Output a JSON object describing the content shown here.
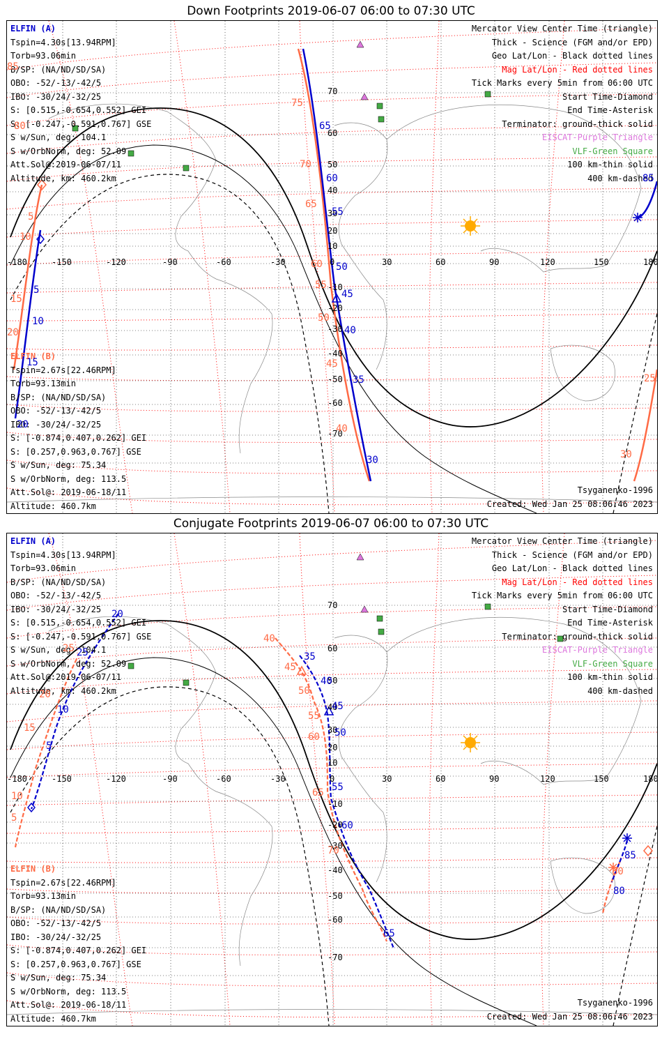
{
  "panels": [
    {
      "title": "Down Footprints 2019-06-07 06:00 to 07:30 UTC",
      "elfin_a": {
        "header": "ELFIN (A)",
        "lines": [
          "Tspin=4.30s[13.94RPM]",
          "Torb=93.06min",
          "B/SP: (NA/ND/SD/SA)",
          "OBO: -52/-13/-42/5",
          "IBO: -30/24/-32/25",
          "S: [0.515,-0.654,0.552] GEI",
          "S: [-0.247,-0.591,0.767] GSE",
          "S w/Sun, deg: 104.1",
          "S w/OrbNorm, deg: 52.09",
          "Att.Sol@:2019-06-07/11",
          "Altitude, km: 460.2km"
        ]
      },
      "elfin_b": {
        "header": "ELFIN (B)",
        "lines": [
          "Tspin=2.67s[22.46RPM]",
          "Torb=93.13min",
          "B/SP: (NA/ND/SD/SA)",
          "OBO: -52/-13/-42/5",
          "IBO: -30/24/-32/25",
          "S: [-0.874,0.407,0.262] GEI",
          "S: [0.257,0.963,0.767] GSE",
          "S w/Sun, deg: 75.34",
          "S w/OrbNorm, deg: 113.5",
          "Att.Sol@: 2019-06-18/11",
          "Altitude: 460.7km"
        ]
      },
      "legend": [
        {
          "text": "Mercator View Center Time (triangle)",
          "color": "#000000"
        },
        {
          "text": "Thick - Science (FGM and/or EPD)",
          "color": "#000000"
        },
        {
          "text": "Geo Lat/Lon - Black dotted lines",
          "color": "#000000"
        },
        {
          "text": "Mag Lat/Lon - Red dotted lines",
          "color": "#ff0000"
        },
        {
          "text": "Tick Marks every 5min from 06:00 UTC",
          "color": "#000000"
        },
        {
          "text": "Start Time-Diamond",
          "color": "#000000"
        },
        {
          "text": "End Time-Asterisk",
          "color": "#000000"
        },
        {
          "text": "Terminator: ground-thick solid",
          "color": "#000000"
        },
        {
          "text": "EISCAT-Purple Triangle",
          "color": "#dd77dd"
        },
        {
          "text": "VLF-Green Square",
          "color": "#44aa44"
        },
        {
          "text": "100 km-thin solid",
          "color": "#000000"
        },
        {
          "text": "400 km-dashed",
          "color": "#000000"
        }
      ],
      "model": "Tsyganenko-1996",
      "created": "Created: Wed Jan 25 08:06:46 2023",
      "lon_ticks": [
        "-180",
        "-150",
        "-120",
        "-90",
        "-60",
        "-30",
        "0",
        "30",
        "60",
        "90",
        "120",
        "150",
        "180"
      ],
      "lat_ticks": [
        "70",
        "60",
        "50",
        "40",
        "30",
        "20",
        "10",
        "-10",
        "-20",
        "-30",
        "-40",
        "-50",
        "-60",
        "-70"
      ],
      "mag_labels_red": [
        "85",
        "80",
        "75",
        "70",
        "65",
        "60",
        "55",
        "50",
        "45",
        "40",
        "5",
        "10",
        "15",
        "20",
        "25",
        "30"
      ],
      "mag_labels_blue": [
        "65",
        "60",
        "55",
        "50",
        "45",
        "40",
        "35",
        "30",
        "5",
        "10",
        "15",
        "20",
        "85"
      ]
    },
    {
      "title": "Conjugate Footprints 2019-06-07 06:00 to 07:30 UTC",
      "elfin_a": {
        "header": "ELFIN (A)",
        "lines": [
          "Tspin=4.30s[13.94RPM]",
          "Torb=93.06min",
          "B/SP: (NA/ND/SD/SA)",
          "OBO: -52/-13/-42/5",
          "IBO: -30/24/-32/25",
          "S: [0.515,-0.654,0.552] GEI",
          "S: [-0.247,-0.591,0.767] GSE",
          "S w/Sun, deg: 104.1",
          "S w/OrbNorm, deg: 52.09",
          "Att.Sol@:2019-06-07/11",
          "Altitude, km: 460.2km"
        ]
      },
      "elfin_b": {
        "header": "ELFIN (B)",
        "lines": [
          "Tspin=2.67s[22.46RPM]",
          "Torb=93.13min",
          "B/SP: (NA/ND/SD/SA)",
          "OBO: -52/-13/-42/5",
          "IBO: -30/24/-32/25",
          "S: [-0.874,0.407,0.262] GEI",
          "S: [0.257,0.963,0.767] GSE",
          "S w/Sun, deg: 75.34",
          "S w/OrbNorm, deg: 113.5",
          "Att.Sol@: 2019-06-18/11",
          "Altitude: 460.7km"
        ]
      },
      "legend": [
        {
          "text": "Mercator View Center Time (triangle)",
          "color": "#000000"
        },
        {
          "text": "Thick - Science (FGM and/or EPD)",
          "color": "#000000"
        },
        {
          "text": "Geo Lat/Lon - Black dotted lines",
          "color": "#000000"
        },
        {
          "text": "Mag Lat/Lon - Red dotted lines",
          "color": "#ff0000"
        },
        {
          "text": "Tick Marks every 5min from 06:00 UTC",
          "color": "#000000"
        },
        {
          "text": "Start Time-Diamond",
          "color": "#000000"
        },
        {
          "text": "End Time-Asterisk",
          "color": "#000000"
        },
        {
          "text": "Terminator: ground-thick solid",
          "color": "#000000"
        },
        {
          "text": "EISCAT-Purple Triangle",
          "color": "#dd77dd"
        },
        {
          "text": "VLF-Green Square",
          "color": "#44aa44"
        },
        {
          "text": "100 km-thin solid",
          "color": "#000000"
        },
        {
          "text": "400 km-dashed",
          "color": "#000000"
        }
      ],
      "model": "Tsyganenko-1996",
      "created": "Created: Wed Jan 25 08:06:46 2023",
      "lon_ticks": [
        "-180",
        "-150",
        "-120",
        "-90",
        "-60",
        "-30",
        "0",
        "30",
        "60",
        "90",
        "120",
        "150",
        "180"
      ],
      "lat_ticks": [
        "70",
        "60",
        "50",
        "40",
        "30",
        "20",
        "10",
        "-10",
        "-20",
        "-30",
        "-40",
        "-50",
        "-60",
        "-70"
      ],
      "mag_labels_red": [
        "40",
        "45",
        "50",
        "55",
        "60",
        "65",
        "70",
        "25",
        "20",
        "15",
        "10",
        "5",
        "80"
      ],
      "mag_labels_blue": [
        "20",
        "25",
        "10",
        "5",
        "35",
        "40",
        "45",
        "50",
        "55",
        "60",
        "65",
        "85",
        "80"
      ]
    }
  ],
  "colors": {
    "elfin_a": "#0000cc",
    "elfin_b": "#ff6a45",
    "mag_grid": "#ff0000",
    "geo_grid": "#000000",
    "eiscat": "#dd77dd",
    "vlf": "#44aa44",
    "sun": "#ffaa00"
  }
}
